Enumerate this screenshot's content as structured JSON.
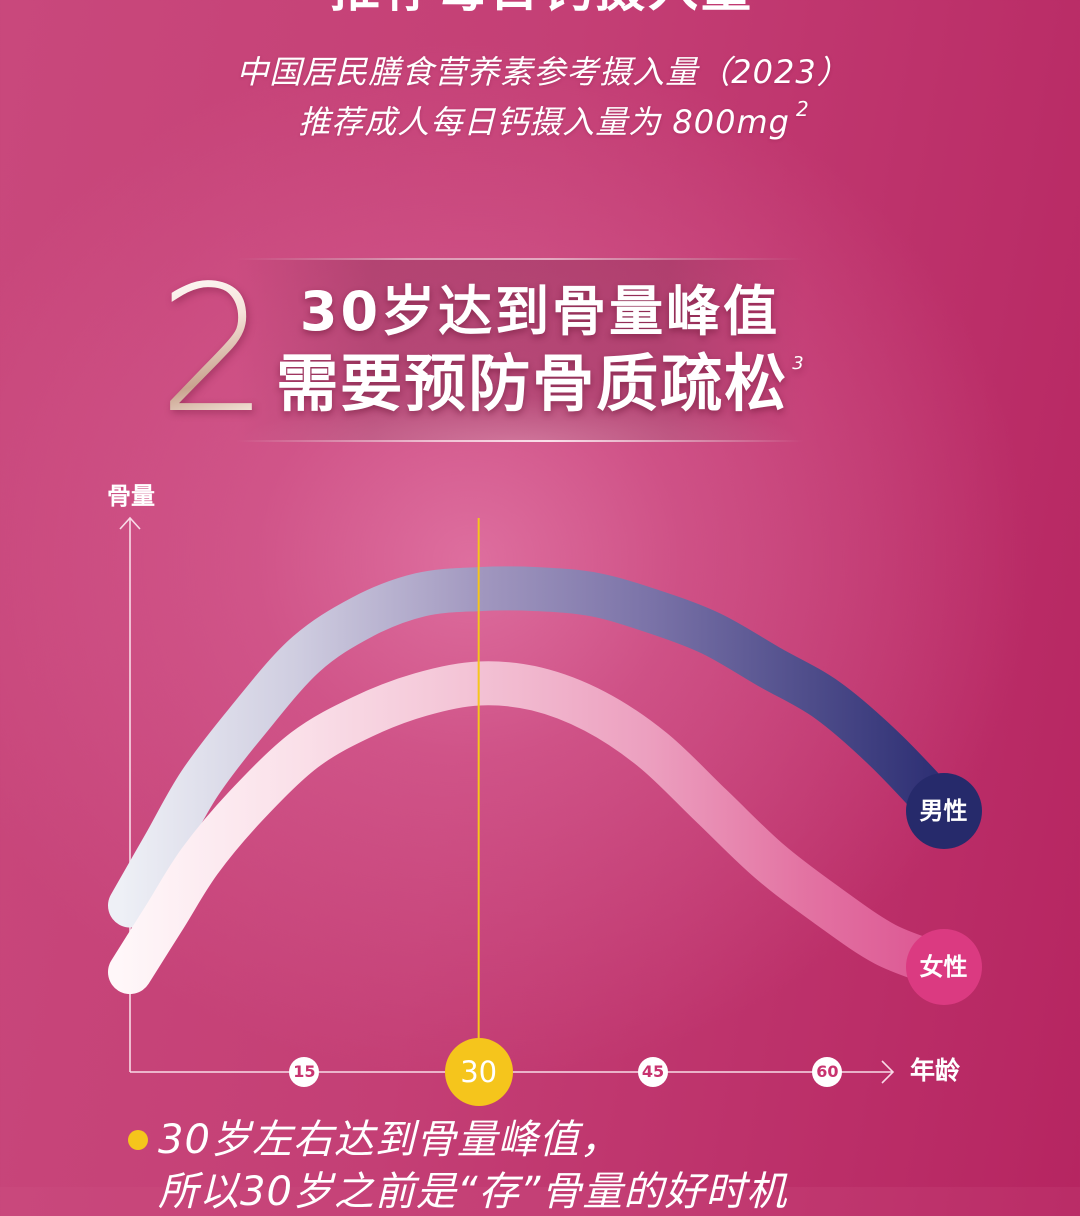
{
  "header": {
    "title": "推荐每日钙摄入量",
    "source_line": "中国居民膳食营养素参考摄入量（2023）",
    "intake_line": "推荐成人每日钙摄入量为 800mg",
    "intake_ref": "2"
  },
  "section": {
    "number": "2",
    "title_line1": "30岁达到骨量峰值",
    "title_line2": "需要预防骨质疏松",
    "title_ref": "3"
  },
  "chart_data": {
    "type": "line",
    "xlabel": "年龄",
    "ylabel": "骨量",
    "x_ticks": [
      15,
      30,
      45,
      60
    ],
    "highlight_x": 30,
    "highlight_color": "#f5c51c",
    "x": [
      0,
      3,
      6,
      10,
      15,
      20,
      25,
      30,
      35,
      40,
      45,
      50,
      55,
      60,
      65,
      70
    ],
    "series": [
      {
        "name": "男性",
        "color": "#262a6b",
        "values": [
          30,
          41,
          52,
          63,
          75,
          82,
          86,
          87,
          87,
          86,
          83,
          79,
          73,
          67,
          58,
          47
        ]
      },
      {
        "name": "女性",
        "color": "#db3a81",
        "values": [
          18,
          28,
          38,
          48,
          58,
          64,
          68,
          70,
          69,
          65,
          58,
          48,
          38,
          30,
          23,
          19
        ]
      }
    ],
    "ylim": [
      0,
      100
    ],
    "grid": false,
    "legend": "right"
  },
  "footer": {
    "bullet_color": "#f5c51c",
    "line1": "30岁左右达到骨量峰值，",
    "line2": "所以30岁之前是“存”骨量的好时机"
  }
}
